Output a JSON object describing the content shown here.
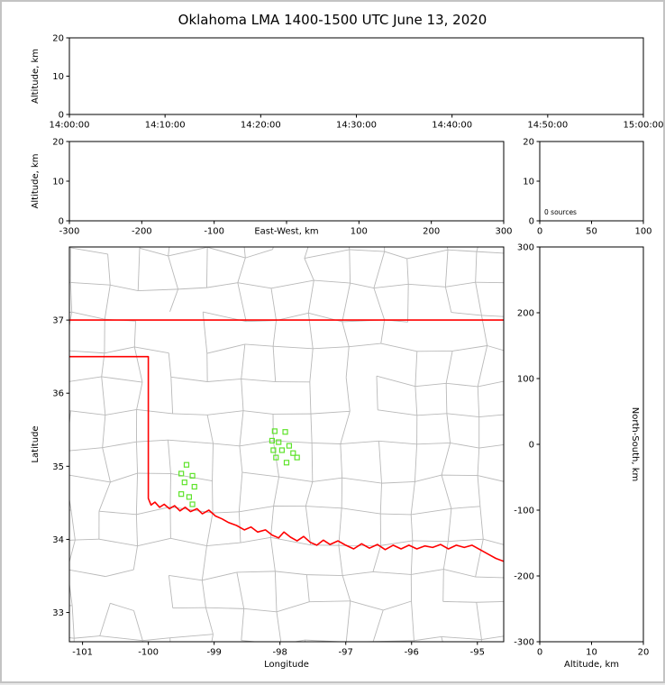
{
  "figure": {
    "title": "Oklahoma LMA 1400-1500 UTC June 13, 2020"
  },
  "chart_data": [
    {
      "id": "time-altitude",
      "type": "scatter",
      "xlabel": "",
      "ylabel": "Altitude, km",
      "xlim": [
        0,
        60
      ],
      "ylim": [
        0,
        20
      ],
      "xticks": [
        {
          "v": 0,
          "label": "14:00:00"
        },
        {
          "v": 10,
          "label": "14:10:00"
        },
        {
          "v": 20,
          "label": "14:20:00"
        },
        {
          "v": 30,
          "label": "14:30:00"
        },
        {
          "v": 40,
          "label": "14:40:00"
        },
        {
          "v": 50,
          "label": "14:50:00"
        },
        {
          "v": 60,
          "label": "15:00:00"
        }
      ],
      "yticks": [
        {
          "v": 0,
          "label": "0"
        },
        {
          "v": 10,
          "label": "10"
        },
        {
          "v": 20,
          "label": "20"
        }
      ],
      "points": []
    },
    {
      "id": "eastwest-altitude",
      "type": "scatter",
      "xlabel_inline": "East-West, km",
      "ylabel": "Altitude, km",
      "xlim": [
        -300,
        300
      ],
      "ylim": [
        0,
        20
      ],
      "xticks": [
        {
          "v": -300,
          "label": "-300"
        },
        {
          "v": -200,
          "label": "-200"
        },
        {
          "v": -100,
          "label": "-100"
        },
        {
          "v": 0,
          "label": ""
        },
        {
          "v": 100,
          "label": "100"
        },
        {
          "v": 200,
          "label": "200"
        },
        {
          "v": 300,
          "label": "300"
        }
      ],
      "yticks": [
        {
          "v": 0,
          "label": "0"
        },
        {
          "v": 10,
          "label": "10"
        },
        {
          "v": 20,
          "label": "20"
        }
      ],
      "points": []
    },
    {
      "id": "altitude-histogram",
      "type": "scatter",
      "annotation": "0 sources",
      "xlim": [
        0,
        100
      ],
      "ylim": [
        0,
        20
      ],
      "xticks": [
        {
          "v": 0,
          "label": "0"
        },
        {
          "v": 50,
          "label": "50"
        },
        {
          "v": 100,
          "label": "100"
        }
      ],
      "yticks": [
        {
          "v": 0,
          "label": "0"
        },
        {
          "v": 10,
          "label": "10"
        },
        {
          "v": 20,
          "label": "20"
        }
      ],
      "points": []
    },
    {
      "id": "plan-view-map",
      "type": "scatter",
      "xlabel": "Longitude",
      "ylabel": "Latitude",
      "xlim": [
        -101.2,
        -94.6
      ],
      "ylim": [
        32.6,
        38.0
      ],
      "xticks": [
        {
          "v": -101,
          "label": "-101"
        },
        {
          "v": -100,
          "label": "-100"
        },
        {
          "v": -99,
          "label": "-99"
        },
        {
          "v": -98,
          "label": "-98"
        },
        {
          "v": -97,
          "label": "-97"
        },
        {
          "v": -96,
          "label": "-96"
        },
        {
          "v": -95,
          "label": "-95"
        }
      ],
      "yticks": [
        {
          "v": 33,
          "label": "33"
        },
        {
          "v": 34,
          "label": "34"
        },
        {
          "v": 35,
          "label": "35"
        },
        {
          "v": 36,
          "label": "36"
        },
        {
          "v": 37,
          "label": "37"
        }
      ],
      "marker": "open-square",
      "marker_size": 5,
      "marker_color": "#5ee32a",
      "county_line_color": "#b9b9b9",
      "state_border_color": "#ff0000",
      "points": [
        [
          -98.08,
          35.48
        ],
        [
          -97.92,
          35.47
        ],
        [
          -98.12,
          35.35
        ],
        [
          -98.02,
          35.33
        ],
        [
          -98.1,
          35.22
        ],
        [
          -97.97,
          35.22
        ],
        [
          -98.06,
          35.12
        ],
        [
          -97.86,
          35.28
        ],
        [
          -97.8,
          35.18
        ],
        [
          -97.74,
          35.12
        ],
        [
          -97.9,
          35.05
        ],
        [
          -99.42,
          35.02
        ],
        [
          -99.5,
          34.9
        ],
        [
          -99.33,
          34.87
        ],
        [
          -99.45,
          34.78
        ],
        [
          -99.3,
          34.72
        ],
        [
          -99.5,
          34.62
        ],
        [
          -99.38,
          34.58
        ],
        [
          -99.33,
          34.48
        ]
      ],
      "state_border": [
        [
          [
            -101.3,
            37.0
          ],
          [
            -94.5,
            37.0
          ]
        ],
        [
          [
            -101.3,
            36.5
          ],
          [
            -100.0,
            36.5
          ],
          [
            -100.0,
            34.56
          ],
          [
            -99.96,
            34.47
          ],
          [
            -99.9,
            34.51
          ],
          [
            -99.83,
            34.44
          ],
          [
            -99.76,
            34.48
          ],
          [
            -99.68,
            34.42
          ],
          [
            -99.6,
            34.46
          ],
          [
            -99.52,
            34.39
          ],
          [
            -99.44,
            34.44
          ],
          [
            -99.36,
            34.38
          ],
          [
            -99.26,
            34.42
          ],
          [
            -99.18,
            34.35
          ],
          [
            -99.08,
            34.4
          ],
          [
            -98.98,
            34.32
          ],
          [
            -98.88,
            34.28
          ],
          [
            -98.78,
            34.23
          ],
          [
            -98.66,
            34.19
          ],
          [
            -98.54,
            34.13
          ],
          [
            -98.44,
            34.17
          ],
          [
            -98.34,
            34.1
          ],
          [
            -98.22,
            34.13
          ],
          [
            -98.12,
            34.06
          ],
          [
            -98.02,
            34.02
          ],
          [
            -97.94,
            34.1
          ],
          [
            -97.84,
            34.03
          ],
          [
            -97.74,
            33.98
          ],
          [
            -97.64,
            34.04
          ],
          [
            -97.54,
            33.96
          ],
          [
            -97.44,
            33.92
          ],
          [
            -97.34,
            33.99
          ],
          [
            -97.24,
            33.93
          ],
          [
            -97.12,
            33.98
          ],
          [
            -97.0,
            33.92
          ],
          [
            -96.88,
            33.87
          ],
          [
            -96.76,
            33.94
          ],
          [
            -96.64,
            33.88
          ],
          [
            -96.52,
            33.93
          ],
          [
            -96.4,
            33.86
          ],
          [
            -96.28,
            33.92
          ],
          [
            -96.16,
            33.87
          ],
          [
            -96.04,
            33.92
          ],
          [
            -95.92,
            33.87
          ],
          [
            -95.8,
            33.91
          ],
          [
            -95.68,
            33.89
          ],
          [
            -95.56,
            33.93
          ],
          [
            -95.44,
            33.87
          ],
          [
            -95.32,
            33.92
          ],
          [
            -95.2,
            33.89
          ],
          [
            -95.08,
            33.92
          ],
          [
            -94.96,
            33.86
          ],
          [
            -94.84,
            33.8
          ],
          [
            -94.72,
            33.74
          ],
          [
            -94.6,
            33.7
          ]
        ]
      ]
    },
    {
      "id": "northsouth-altitude",
      "type": "scatter",
      "xlabel": "Altitude, km",
      "ylabel_right": "North-South, km",
      "xlim": [
        0,
        20
      ],
      "ylim": [
        -300,
        300
      ],
      "xticks": [
        {
          "v": 0,
          "label": "0"
        },
        {
          "v": 10,
          "label": "10"
        },
        {
          "v": 20,
          "label": "20"
        }
      ],
      "yticks": [
        {
          "v": 300,
          "label": "300"
        },
        {
          "v": 200,
          "label": "200"
        },
        {
          "v": 100,
          "label": "100"
        },
        {
          "v": 0,
          "label": "0"
        },
        {
          "v": -100,
          "label": "-100"
        },
        {
          "v": -200,
          "label": "-200"
        },
        {
          "v": -300,
          "label": "-300"
        }
      ],
      "points": []
    }
  ]
}
